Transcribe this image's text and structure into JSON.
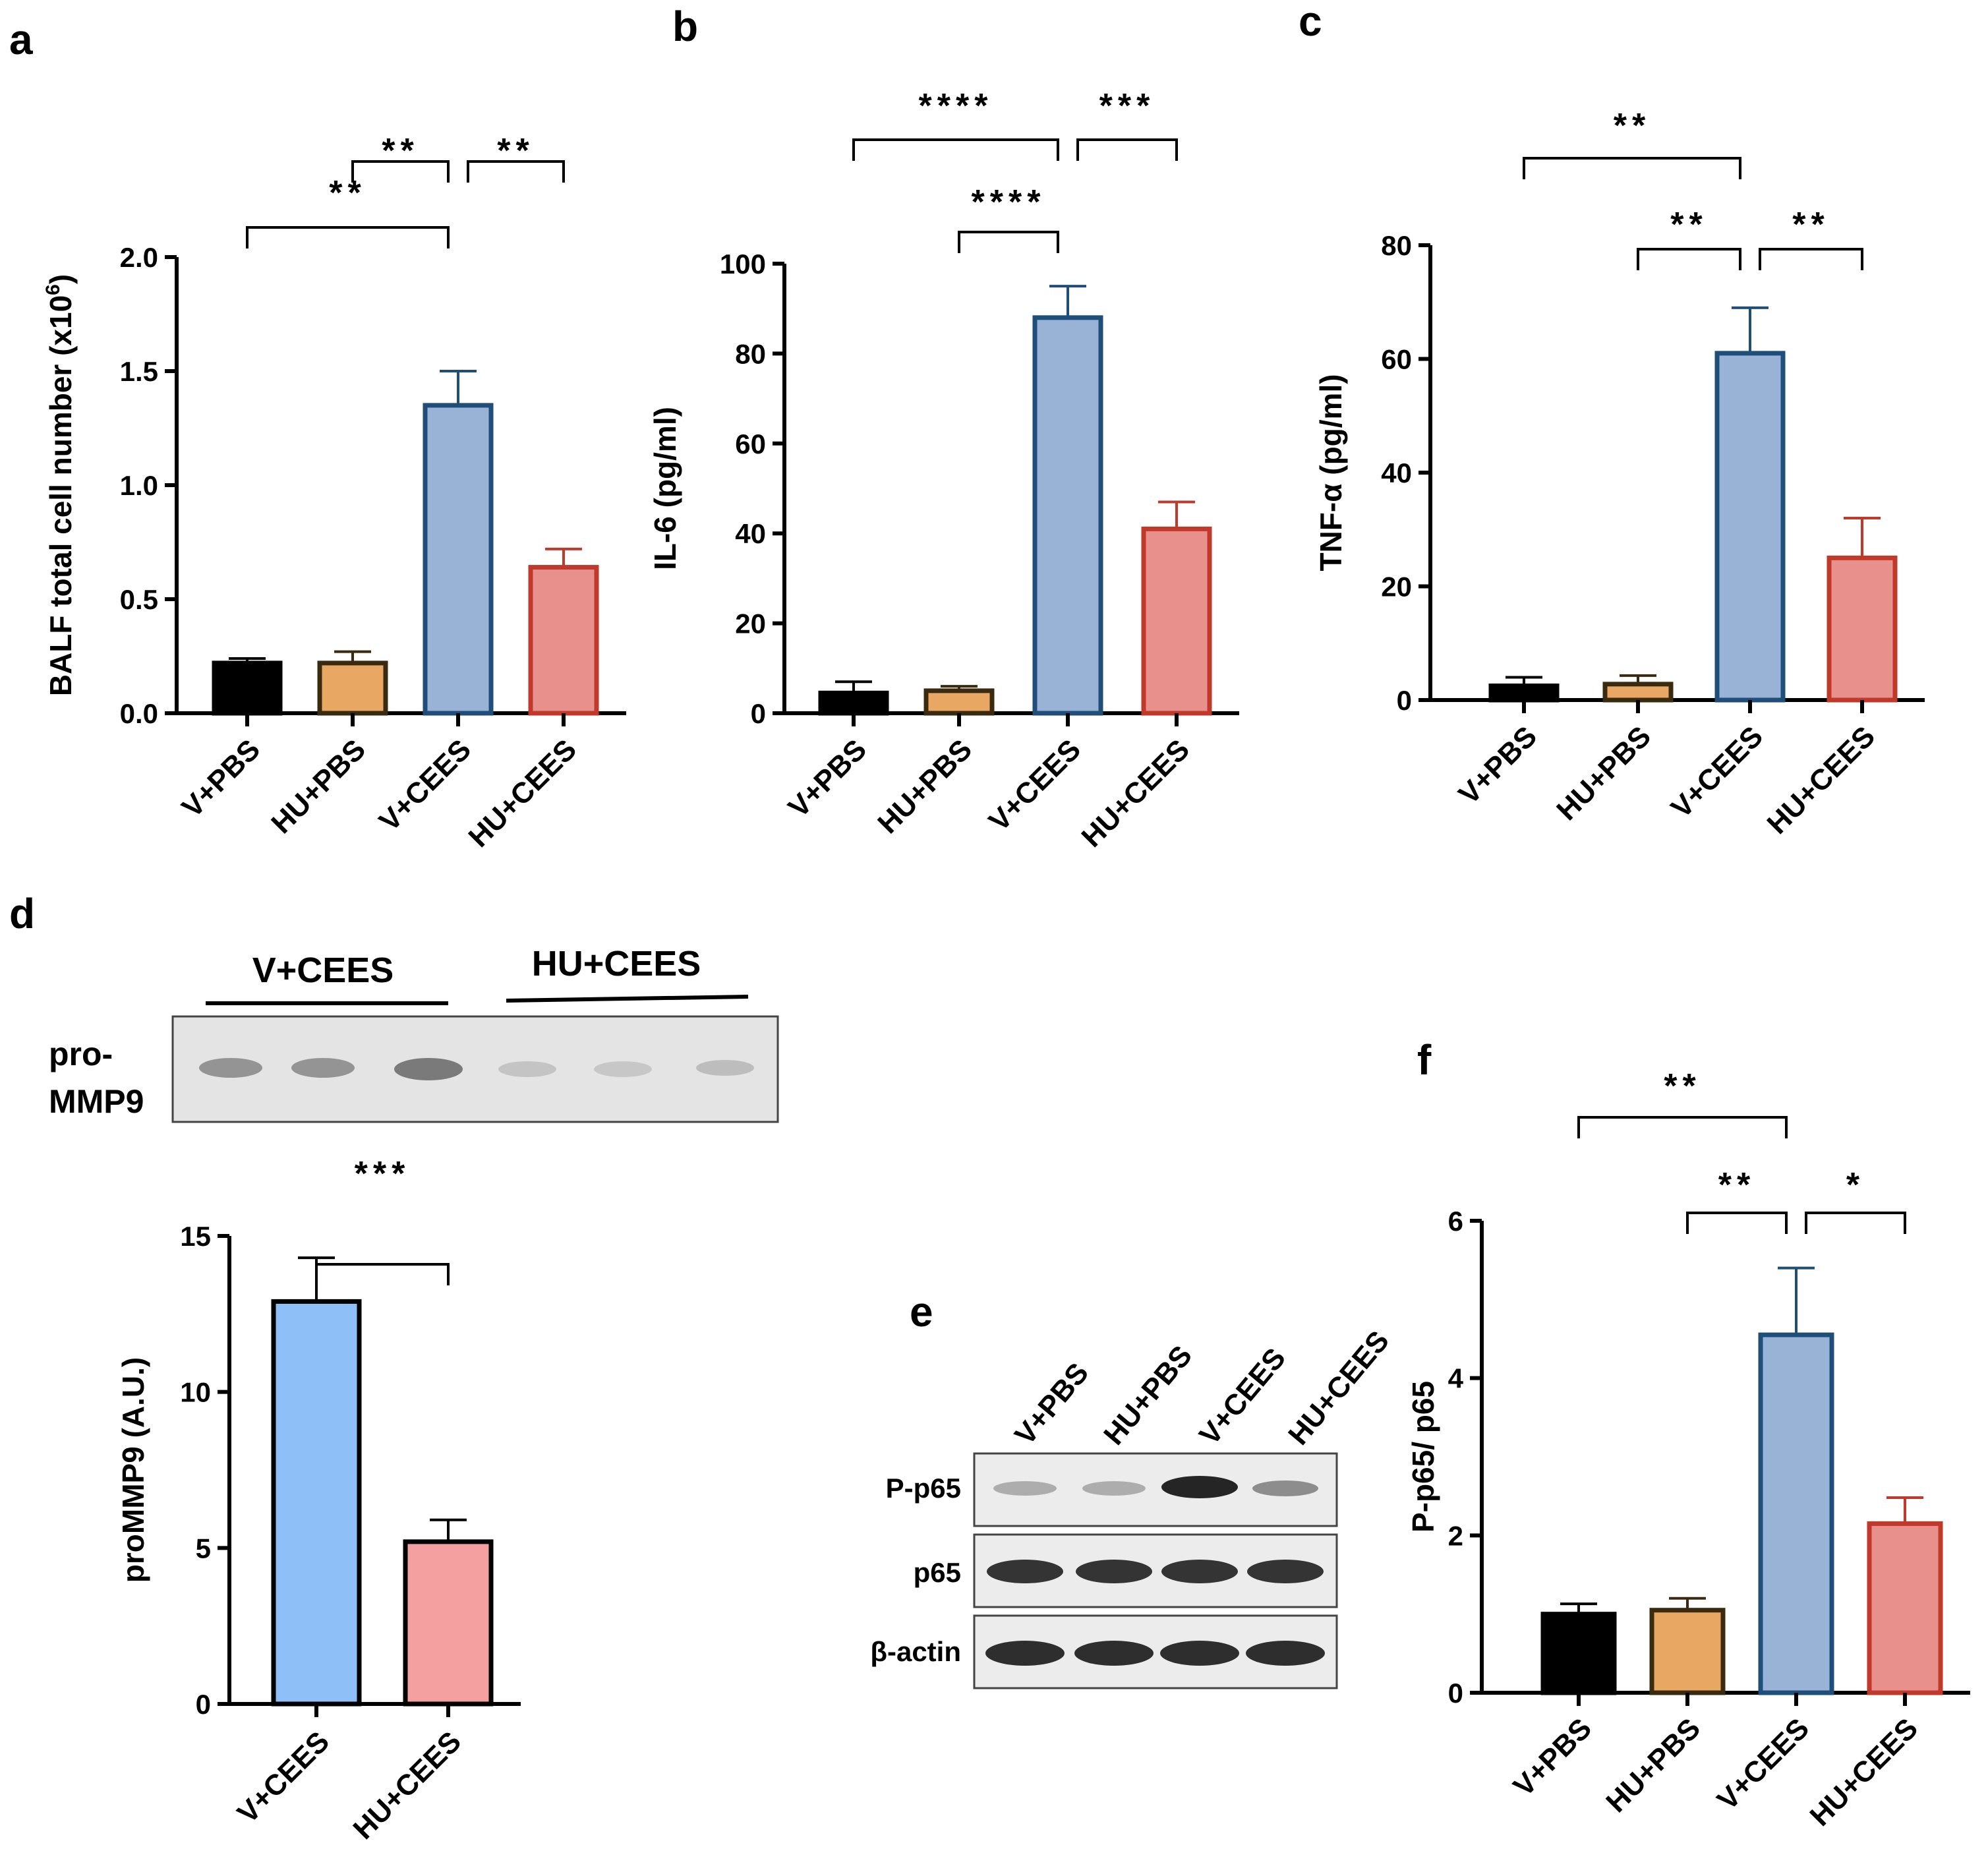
{
  "colors": {
    "V+PBS": "#000000",
    "HU+PBS": "#e8a864",
    "V+CEES": "#98b3d6",
    "HU+CEES": "#e8918c",
    "V+PBS_edge": "#000000",
    "HU+PBS_edge": "#3a2a10",
    "V+CEES_edge": "#1f4e79",
    "HU+CEES_edge": "#c0392b",
    "d_V+CEES": "#8fbff7",
    "d_HU+CEES": "#f5a0a0",
    "d_edge": "#000000"
  },
  "panels": {
    "a": {
      "letter": "a"
    },
    "b": {
      "letter": "b"
    },
    "c": {
      "letter": "c"
    },
    "d": {
      "letter": "d",
      "blot": {
        "groups": [
          "V+CEES",
          "HU+CEES"
        ],
        "row_labels": [
          "pro-",
          "MMP9"
        ]
      }
    },
    "e": {
      "letter": "e",
      "blot": {
        "lanes": [
          "V+PBS",
          "HU+PBS",
          "V+CEES",
          "HU+CEES"
        ],
        "rows": [
          "P-p65",
          "p65",
          "β-actin"
        ]
      }
    },
    "f": {
      "letter": "f"
    }
  },
  "chart_data": [
    {
      "panel": "a",
      "type": "bar",
      "categories": [
        "V+PBS",
        "HU+PBS",
        "V+CEES",
        "HU+CEES"
      ],
      "values": [
        0.22,
        0.22,
        1.35,
        0.64
      ],
      "errors": [
        0.02,
        0.05,
        0.15,
        0.08
      ],
      "ylabel": "BALF total cell number (x10",
      "ylabel_sup": "6",
      "ylabel_end": ")",
      "ylim": [
        0,
        2.0
      ],
      "yticks": [
        0.0,
        0.5,
        1.0,
        1.5,
        2.0
      ],
      "ytick_labels": [
        "0.0",
        "0.5",
        "1.0",
        "1.5",
        "2.0"
      ],
      "significance": [
        {
          "from": 0,
          "to": 2,
          "label": "**"
        },
        {
          "from": 1,
          "to": 2,
          "label": "**"
        },
        {
          "from": 2,
          "to": 3,
          "label": "**"
        }
      ]
    },
    {
      "panel": "b",
      "type": "bar",
      "categories": [
        "V+PBS",
        "HU+PBS",
        "V+CEES",
        "HU+CEES"
      ],
      "values": [
        4.5,
        5.0,
        88,
        41
      ],
      "errors": [
        2.5,
        1.0,
        7,
        6
      ],
      "ylabel": "IL-6 (pg/ml)",
      "ylim": [
        0,
        100
      ],
      "yticks": [
        0,
        20,
        40,
        60,
        80,
        100
      ],
      "ytick_labels": [
        "0",
        "20",
        "40",
        "60",
        "80",
        "100"
      ],
      "significance": [
        {
          "from": 0,
          "to": 2,
          "label": "****"
        },
        {
          "from": 2,
          "to": 3,
          "label": "***"
        },
        {
          "from": 1,
          "to": 2,
          "label": "****"
        }
      ]
    },
    {
      "panel": "c",
      "type": "bar",
      "categories": [
        "V+PBS",
        "HU+PBS",
        "V+CEES",
        "HU+CEES"
      ],
      "values": [
        2.5,
        2.8,
        61,
        25
      ],
      "errors": [
        1.5,
        1.5,
        8,
        7
      ],
      "ylabel": "TNF-α (pg/ml)",
      "ylim": [
        0,
        80
      ],
      "yticks": [
        0,
        20,
        40,
        60,
        80
      ],
      "ytick_labels": [
        "0",
        "20",
        "40",
        "60",
        "80"
      ],
      "significance": [
        {
          "from": 0,
          "to": 2,
          "label": "**"
        },
        {
          "from": 1,
          "to": 2,
          "label": "**"
        },
        {
          "from": 2,
          "to": 3,
          "label": "**"
        }
      ]
    },
    {
      "panel": "d",
      "type": "bar",
      "categories": [
        "V+CEES",
        "HU+CEES"
      ],
      "values": [
        12.9,
        5.2
      ],
      "errors": [
        1.4,
        0.7
      ],
      "ylabel": "proMMP9 (A.U.)",
      "ylim": [
        0,
        15
      ],
      "yticks": [
        0,
        5,
        10,
        15
      ],
      "ytick_labels": [
        "0",
        "5",
        "10",
        "15"
      ],
      "significance": [
        {
          "from": 0,
          "to": 1,
          "label": "***"
        }
      ]
    },
    {
      "panel": "f",
      "type": "bar",
      "categories": [
        "V+PBS",
        "HU+PBS",
        "V+CEES",
        "HU+CEES"
      ],
      "values": [
        1.0,
        1.05,
        4.55,
        2.15
      ],
      "errors": [
        0.13,
        0.15,
        0.85,
        0.33
      ],
      "ylabel": "P-p65/ p65",
      "ylim": [
        0,
        6
      ],
      "yticks": [
        0,
        2,
        4,
        6
      ],
      "ytick_labels": [
        "0",
        "2",
        "4",
        "6"
      ],
      "significance": [
        {
          "from": 0,
          "to": 2,
          "label": "**"
        },
        {
          "from": 1,
          "to": 2,
          "label": "**"
        },
        {
          "from": 2,
          "to": 3,
          "label": "*"
        }
      ]
    }
  ]
}
